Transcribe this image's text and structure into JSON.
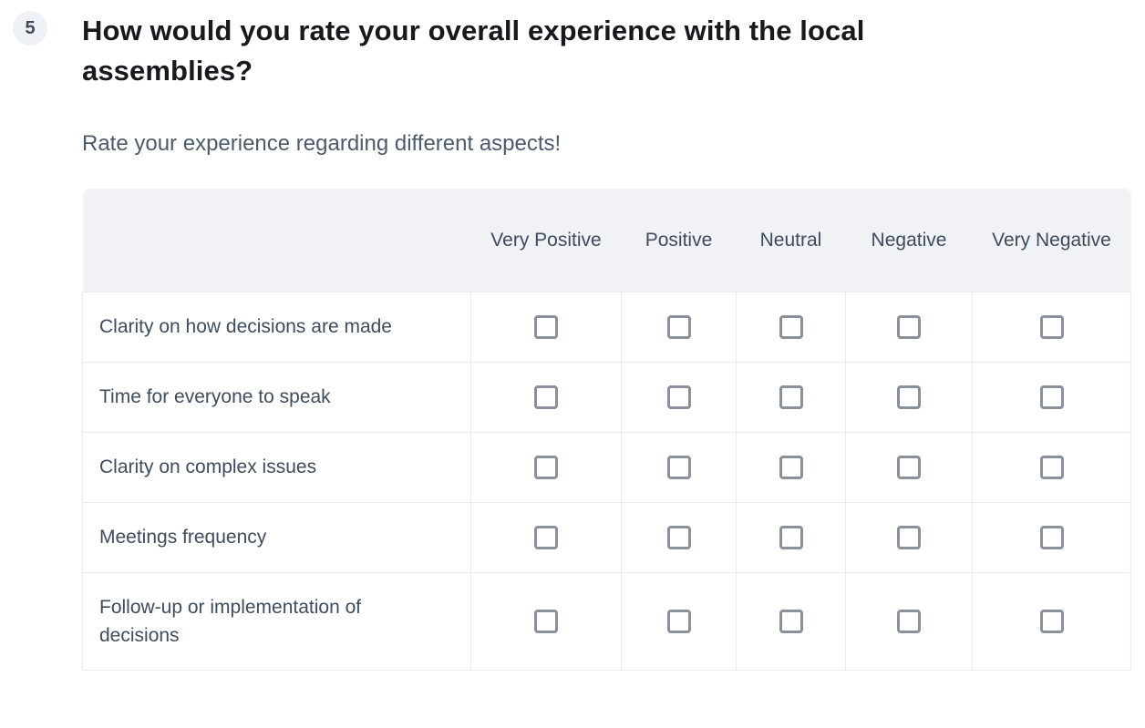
{
  "question": {
    "number": "5",
    "title": "How would you rate your overall experience with the local assemblies?",
    "subtitle": "Rate your experience regarding different aspects!"
  },
  "matrix": {
    "columns": [
      "Very Positive",
      "Positive",
      "Neutral",
      "Negative",
      "Very Negative"
    ],
    "rows": [
      {
        "label": "Clarity on how decisions are made"
      },
      {
        "label": "Time for everyone to speak"
      },
      {
        "label": "Clarity on complex issues"
      },
      {
        "label": "Meetings frequency"
      },
      {
        "label": "Follow-up or implementation of decisions"
      }
    ],
    "checkbox_state": "unchecked"
  },
  "colors": {
    "header_background": "#f0f2f6",
    "badge_background": "#eef1f5",
    "title_text": "#17191c",
    "slate_text": "#3f4c5d",
    "subtitle_text": "#4d5a6a",
    "cell_border": "#eaecf1",
    "checkbox_border": "#8b909d"
  }
}
